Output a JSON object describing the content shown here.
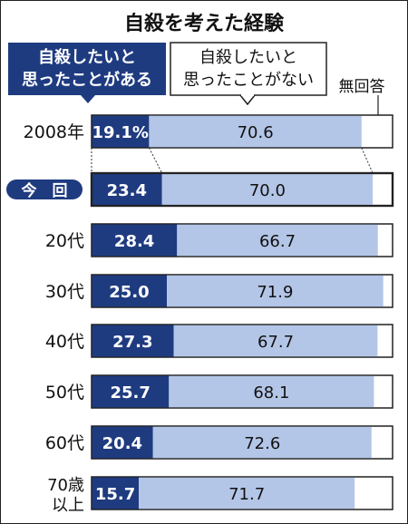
{
  "chart_data": {
    "type": "bar",
    "stacked": true,
    "orientation": "horizontal",
    "normalized_to": 100,
    "title": "自殺を考えた経験",
    "categories": [
      "2008年",
      "今回",
      "20代",
      "30代",
      "40代",
      "50代",
      "60代",
      "70歳以上"
    ],
    "category_labels": [
      "2008年",
      "今　回",
      "20代",
      "30代",
      "40代",
      "50代",
      "60代",
      "70歳\n以上"
    ],
    "highlight_category": "今回",
    "series": [
      {
        "name": "自殺したいと思ったことがある",
        "values": [
          19.1,
          23.4,
          28.4,
          25.0,
          27.3,
          25.7,
          20.4,
          15.7
        ],
        "color": "#1f3b80",
        "text_color": "#ffffff"
      },
      {
        "name": "自殺したいと思ったことがない",
        "values": [
          70.6,
          70.0,
          66.7,
          71.9,
          67.7,
          68.1,
          72.6,
          71.7
        ],
        "color": "#b4c6e7",
        "text_color": "#111111"
      },
      {
        "name": "無回答",
        "values": [
          10.3,
          6.6,
          4.9,
          3.1,
          5.0,
          6.2,
          7.0,
          12.6
        ],
        "color": "#ffffff",
        "text_color": "#111111"
      }
    ],
    "value_labels": {
      "yes": [
        "19.1%",
        "23.4",
        "28.4",
        "25.0",
        "27.3",
        "25.7",
        "20.4",
        "15.7"
      ],
      "no": [
        "70.6",
        "70.0",
        "66.7",
        "71.9",
        "67.7",
        "68.1",
        "72.6",
        "71.7"
      ]
    },
    "legend": {
      "yes_label": [
        "自殺したいと",
        "思ったことがある"
      ],
      "no_label": [
        "自殺したいと",
        "思ったことがない"
      ],
      "na_label": "無回答",
      "placement": "top"
    },
    "xlim": [
      0,
      100
    ]
  }
}
